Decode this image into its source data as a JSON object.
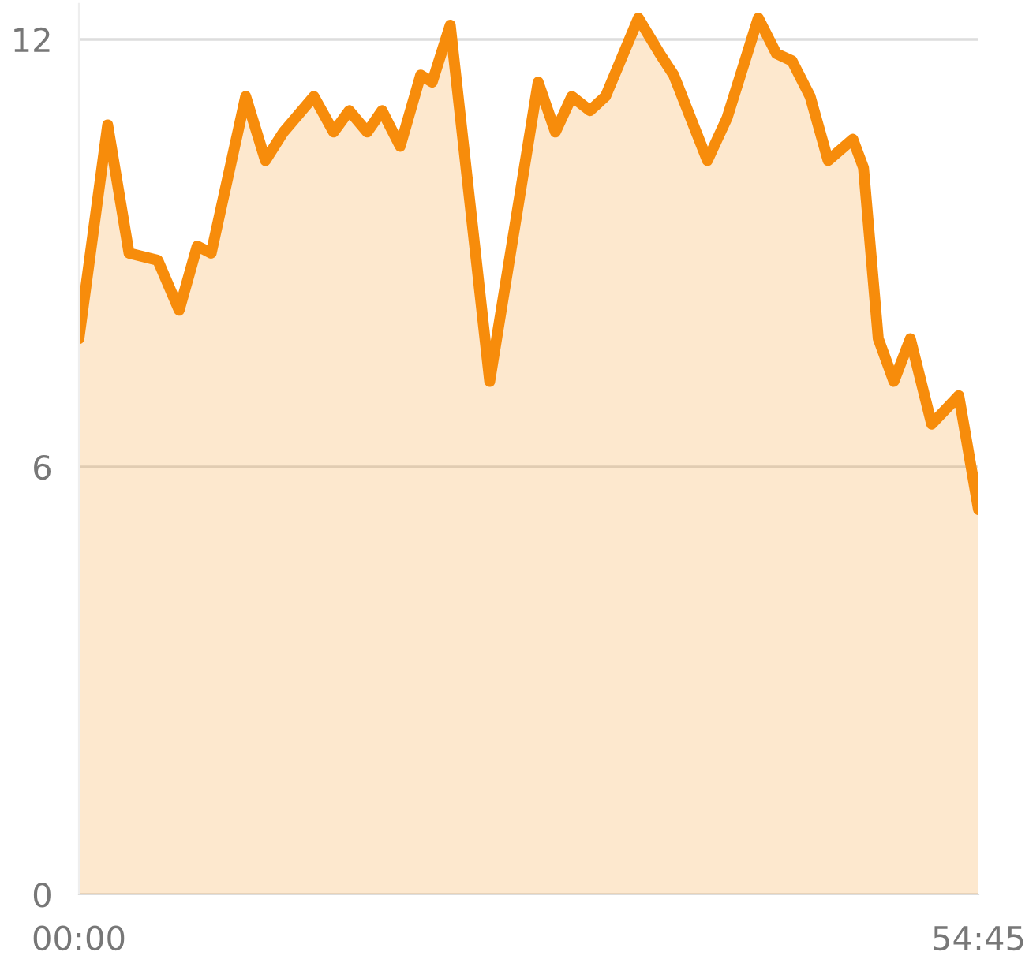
{
  "chart_data": {
    "type": "area",
    "x": [
      0,
      1.75,
      3.05,
      4.8,
      6.1,
      7.2,
      8.05,
      10.15,
      11.35,
      12.45,
      14.3,
      15.5,
      16.45,
      17.55,
      18.45,
      19.55,
      20.8,
      21.5,
      22.6,
      25.0,
      27.95,
      29.0,
      30.0,
      31.1,
      32.05,
      34.05,
      35.35,
      36.2,
      38.25,
      39.45,
      41.35,
      42.45,
      43.4,
      44.5,
      45.6,
      47.1,
      47.75,
      48.65,
      49.6,
      50.6,
      51.9,
      53.55,
      54.75
    ],
    "series": [
      {
        "color": "#f78c0b",
        "values": [
          7.8,
          10.8,
          9.0,
          8.9,
          8.2,
          9.1,
          9.0,
          11.2,
          10.3,
          10.7,
          11.2,
          10.7,
          11.0,
          10.7,
          11.0,
          10.5,
          11.5,
          11.4,
          12.2,
          7.2,
          11.4,
          10.7,
          11.2,
          11.0,
          11.2,
          12.3,
          11.8,
          11.5,
          10.3,
          10.9,
          12.3,
          11.8,
          11.7,
          11.2,
          10.3,
          10.6,
          10.2,
          7.8,
          7.2,
          7.8,
          6.6,
          7.0,
          5.4
        ]
      }
    ],
    "xlim": [
      0,
      54.75
    ],
    "xticks": [
      {
        "value": 0,
        "label": "00:00"
      },
      {
        "value": 54.75,
        "label": "54:45"
      }
    ],
    "ylim": [
      0,
      12.5
    ],
    "yticks": [
      0,
      6,
      12
    ],
    "grid": "y",
    "line_style": "solid"
  }
}
